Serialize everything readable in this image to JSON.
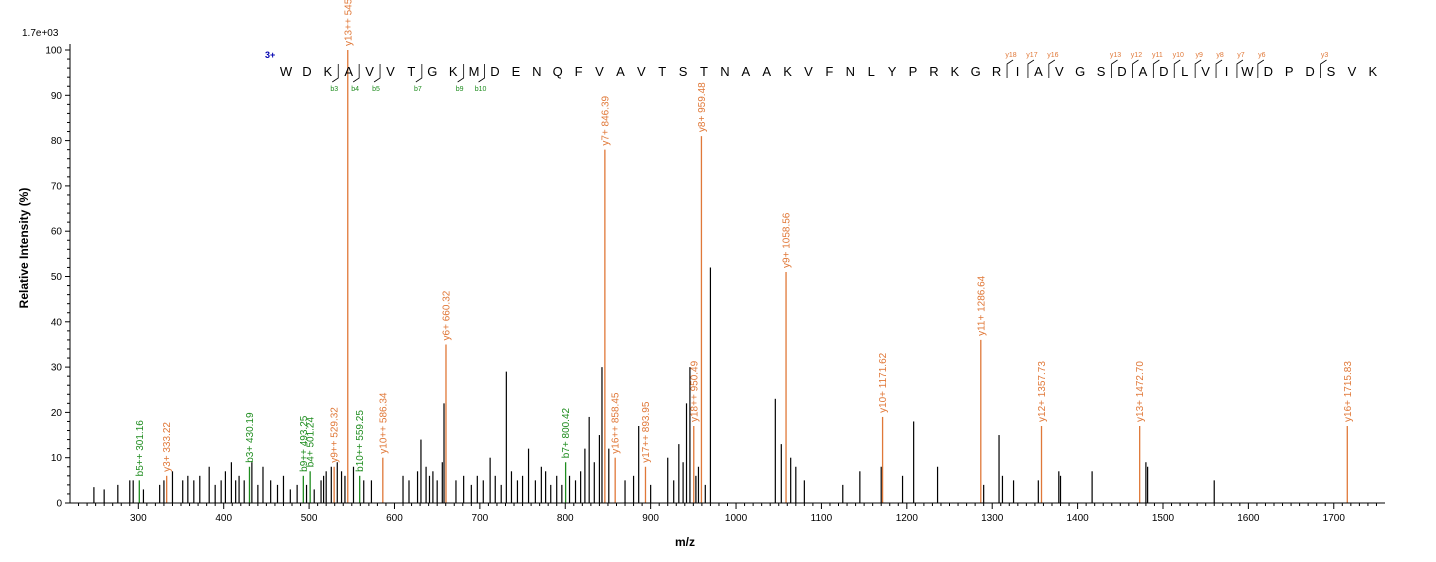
{
  "chart_data": {
    "type": "bar",
    "scale_label": "1.7e+03",
    "xlabel": "m/z",
    "ylabel": "Relative   Intensity (%)",
    "xlim": [
      220,
      1760
    ],
    "ylim": [
      0,
      100
    ],
    "x_ticks": [
      300,
      400,
      500,
      600,
      700,
      800,
      900,
      1000,
      1100,
      1200,
      1300,
      1400,
      1500,
      1600,
      1700
    ],
    "y_ticks": [
      0,
      10,
      20,
      30,
      40,
      50,
      60,
      70,
      80,
      90,
      100
    ],
    "colors": {
      "y_ion": "#E07838",
      "b_ion": "#1E8C1E",
      "unassigned": "#000000",
      "charge": "#0000B0"
    },
    "precursor_charge": "3+",
    "sequence": [
      "W",
      "D",
      "K",
      "A",
      "V",
      "V",
      "T",
      "G",
      "K",
      "M",
      "D",
      "E",
      "N",
      "Q",
      "F",
      "V",
      "A",
      "V",
      "T",
      "S",
      "T",
      "N",
      "A",
      "A",
      "K",
      "V",
      "F",
      "N",
      "L",
      "Y",
      "P",
      "R",
      "K",
      "G",
      "R",
      "I",
      "A",
      "V",
      "G",
      "S",
      "D",
      "A",
      "D",
      "L",
      "V",
      "I",
      "W",
      "D",
      "P",
      "D",
      "S",
      "V",
      "K"
    ],
    "b_marks": [
      {
        "n": 3,
        "label": "b3"
      },
      {
        "n": 4,
        "label": "b4"
      },
      {
        "n": 5,
        "label": "b5"
      },
      {
        "n": 7,
        "label": "b7"
      },
      {
        "n": 9,
        "label": "b9"
      },
      {
        "n": 10,
        "label": "b10"
      }
    ],
    "y_marks": [
      {
        "n": 18,
        "label": "y18"
      },
      {
        "n": 17,
        "label": "y17"
      },
      {
        "n": 16,
        "label": "y16"
      },
      {
        "n": 13,
        "label": "y13"
      },
      {
        "n": 12,
        "label": "y12"
      },
      {
        "n": 11,
        "label": "y11"
      },
      {
        "n": 10,
        "label": "y10"
      },
      {
        "n": 9,
        "label": "y9"
      },
      {
        "n": 8,
        "label": "y8"
      },
      {
        "n": 7,
        "label": "y7"
      },
      {
        "n": 6,
        "label": "y6"
      },
      {
        "n": 3,
        "label": "y3"
      }
    ],
    "annotated_peaks": [
      {
        "mz": 301.16,
        "intensity": 5,
        "ion": "b",
        "label": "b5++ 301.16"
      },
      {
        "mz": 333.22,
        "intensity": 6,
        "ion": "y",
        "label": "y3+ 333.22"
      },
      {
        "mz": 430.19,
        "intensity": 8,
        "ion": "b",
        "label": "b3+ 430.19"
      },
      {
        "mz": 493.25,
        "intensity": 6,
        "ion": "b",
        "label": "b9++ 493.25"
      },
      {
        "mz": 501.24,
        "intensity": 7,
        "ion": "b",
        "label": "b4+ 501.24"
      },
      {
        "mz": 529.32,
        "intensity": 8,
        "ion": "y",
        "label": "y9++ 529.32"
      },
      {
        "mz": 545.29,
        "intensity": 100,
        "ion": "y",
        "label": "y13++ 545.29"
      },
      {
        "mz": 559.25,
        "intensity": 6,
        "ion": "b",
        "label": "b10++ 559.25"
      },
      {
        "mz": 586.34,
        "intensity": 10,
        "ion": "y",
        "label": "y10++ 586.34"
      },
      {
        "mz": 660.32,
        "intensity": 35,
        "ion": "y",
        "label": "y6+ 660.32"
      },
      {
        "mz": 800.42,
        "intensity": 9,
        "ion": "b",
        "label": "b7+ 800.42"
      },
      {
        "mz": 846.39,
        "intensity": 78,
        "ion": "y",
        "label": "y7+ 846.39"
      },
      {
        "mz": 858.45,
        "intensity": 10,
        "ion": "y",
        "label": "y16++ 858.45"
      },
      {
        "mz": 893.95,
        "intensity": 8,
        "ion": "y",
        "label": "y17++ 893.95"
      },
      {
        "mz": 950.49,
        "intensity": 17,
        "ion": "y",
        "label": "y18++ 950.49"
      },
      {
        "mz": 959.48,
        "intensity": 81,
        "ion": "y",
        "label": "y8+ 959.48"
      },
      {
        "mz": 1058.56,
        "intensity": 51,
        "ion": "y",
        "label": "y9+ 1058.56"
      },
      {
        "mz": 1171.62,
        "intensity": 19,
        "ion": "y",
        "label": "y10+ 1171.62"
      },
      {
        "mz": 1286.64,
        "intensity": 36,
        "ion": "y",
        "label": "y11+ 1286.64"
      },
      {
        "mz": 1357.73,
        "intensity": 17,
        "ion": "y",
        "label": "y12+ 1357.73"
      },
      {
        "mz": 1472.7,
        "intensity": 17,
        "ion": "y",
        "label": "y13+ 1472.70"
      },
      {
        "mz": 1715.83,
        "intensity": 17,
        "ion": "y",
        "label": "y16+ 1715.83"
      }
    ],
    "unassigned_peaks": [
      {
        "mz": 248,
        "intensity": 3.5
      },
      {
        "mz": 260,
        "intensity": 3
      },
      {
        "mz": 276,
        "intensity": 4
      },
      {
        "mz": 290,
        "intensity": 5
      },
      {
        "mz": 294,
        "intensity": 5
      },
      {
        "mz": 306,
        "intensity": 3
      },
      {
        "mz": 325,
        "intensity": 4
      },
      {
        "mz": 330,
        "intensity": 5
      },
      {
        "mz": 340,
        "intensity": 7
      },
      {
        "mz": 352,
        "intensity": 5
      },
      {
        "mz": 358,
        "intensity": 6
      },
      {
        "mz": 365,
        "intensity": 5
      },
      {
        "mz": 372,
        "intensity": 6
      },
      {
        "mz": 383,
        "intensity": 8
      },
      {
        "mz": 390,
        "intensity": 4
      },
      {
        "mz": 397,
        "intensity": 5
      },
      {
        "mz": 402,
        "intensity": 7
      },
      {
        "mz": 409,
        "intensity": 9
      },
      {
        "mz": 414,
        "intensity": 5
      },
      {
        "mz": 418,
        "intensity": 6
      },
      {
        "mz": 424,
        "intensity": 5
      },
      {
        "mz": 433,
        "intensity": 9
      },
      {
        "mz": 440,
        "intensity": 4
      },
      {
        "mz": 446,
        "intensity": 8
      },
      {
        "mz": 455,
        "intensity": 5
      },
      {
        "mz": 463,
        "intensity": 4
      },
      {
        "mz": 470,
        "intensity": 6
      },
      {
        "mz": 478,
        "intensity": 3
      },
      {
        "mz": 486,
        "intensity": 4
      },
      {
        "mz": 497,
        "intensity": 4
      },
      {
        "mz": 506,
        "intensity": 3
      },
      {
        "mz": 514,
        "intensity": 5
      },
      {
        "mz": 517,
        "intensity": 6
      },
      {
        "mz": 520,
        "intensity": 7
      },
      {
        "mz": 526,
        "intensity": 8
      },
      {
        "mz": 533,
        "intensity": 9
      },
      {
        "mz": 538,
        "intensity": 7
      },
      {
        "mz": 542,
        "intensity": 6
      },
      {
        "mz": 552,
        "intensity": 8
      },
      {
        "mz": 564,
        "intensity": 5
      },
      {
        "mz": 573,
        "intensity": 5
      },
      {
        "mz": 610,
        "intensity": 6
      },
      {
        "mz": 617,
        "intensity": 5
      },
      {
        "mz": 627,
        "intensity": 7
      },
      {
        "mz": 631,
        "intensity": 14
      },
      {
        "mz": 637,
        "intensity": 8
      },
      {
        "mz": 641,
        "intensity": 6
      },
      {
        "mz": 645,
        "intensity": 7
      },
      {
        "mz": 650,
        "intensity": 5
      },
      {
        "mz": 656,
        "intensity": 9
      },
      {
        "mz": 658,
        "intensity": 22
      },
      {
        "mz": 672,
        "intensity": 5
      },
      {
        "mz": 681,
        "intensity": 6
      },
      {
        "mz": 690,
        "intensity": 4
      },
      {
        "mz": 697,
        "intensity": 6
      },
      {
        "mz": 704,
        "intensity": 5
      },
      {
        "mz": 712,
        "intensity": 10
      },
      {
        "mz": 718,
        "intensity": 6
      },
      {
        "mz": 725,
        "intensity": 4
      },
      {
        "mz": 731,
        "intensity": 29
      },
      {
        "mz": 737,
        "intensity": 7
      },
      {
        "mz": 744,
        "intensity": 5
      },
      {
        "mz": 750,
        "intensity": 6
      },
      {
        "mz": 757,
        "intensity": 12
      },
      {
        "mz": 765,
        "intensity": 5
      },
      {
        "mz": 772,
        "intensity": 8
      },
      {
        "mz": 777,
        "intensity": 7
      },
      {
        "mz": 783,
        "intensity": 4
      },
      {
        "mz": 790,
        "intensity": 6
      },
      {
        "mz": 796,
        "intensity": 4
      },
      {
        "mz": 805,
        "intensity": 6
      },
      {
        "mz": 812,
        "intensity": 5
      },
      {
        "mz": 818,
        "intensity": 7
      },
      {
        "mz": 823,
        "intensity": 12
      },
      {
        "mz": 828,
        "intensity": 19
      },
      {
        "mz": 834,
        "intensity": 9
      },
      {
        "mz": 840,
        "intensity": 15
      },
      {
        "mz": 843,
        "intensity": 30
      },
      {
        "mz": 851,
        "intensity": 12
      },
      {
        "mz": 870,
        "intensity": 5
      },
      {
        "mz": 880,
        "intensity": 6
      },
      {
        "mz": 886,
        "intensity": 17
      },
      {
        "mz": 900,
        "intensity": 4
      },
      {
        "mz": 920,
        "intensity": 10
      },
      {
        "mz": 927,
        "intensity": 5
      },
      {
        "mz": 933,
        "intensity": 13
      },
      {
        "mz": 938,
        "intensity": 9
      },
      {
        "mz": 942,
        "intensity": 22
      },
      {
        "mz": 946,
        "intensity": 30
      },
      {
        "mz": 953,
        "intensity": 6
      },
      {
        "mz": 956,
        "intensity": 8
      },
      {
        "mz": 964,
        "intensity": 4
      },
      {
        "mz": 970,
        "intensity": 52
      },
      {
        "mz": 1046,
        "intensity": 23
      },
      {
        "mz": 1053,
        "intensity": 13
      },
      {
        "mz": 1064,
        "intensity": 10
      },
      {
        "mz": 1070,
        "intensity": 8
      },
      {
        "mz": 1080,
        "intensity": 5
      },
      {
        "mz": 1125,
        "intensity": 4
      },
      {
        "mz": 1145,
        "intensity": 7
      },
      {
        "mz": 1170,
        "intensity": 8
      },
      {
        "mz": 1195,
        "intensity": 6
      },
      {
        "mz": 1208,
        "intensity": 18
      },
      {
        "mz": 1236,
        "intensity": 8
      },
      {
        "mz": 1290,
        "intensity": 4
      },
      {
        "mz": 1308,
        "intensity": 15
      },
      {
        "mz": 1312,
        "intensity": 6
      },
      {
        "mz": 1325,
        "intensity": 5
      },
      {
        "mz": 1354,
        "intensity": 5
      },
      {
        "mz": 1378,
        "intensity": 7
      },
      {
        "mz": 1380,
        "intensity": 6
      },
      {
        "mz": 1417,
        "intensity": 7
      },
      {
        "mz": 1480,
        "intensity": 9
      },
      {
        "mz": 1482,
        "intensity": 8
      },
      {
        "mz": 1560,
        "intensity": 5
      }
    ]
  }
}
